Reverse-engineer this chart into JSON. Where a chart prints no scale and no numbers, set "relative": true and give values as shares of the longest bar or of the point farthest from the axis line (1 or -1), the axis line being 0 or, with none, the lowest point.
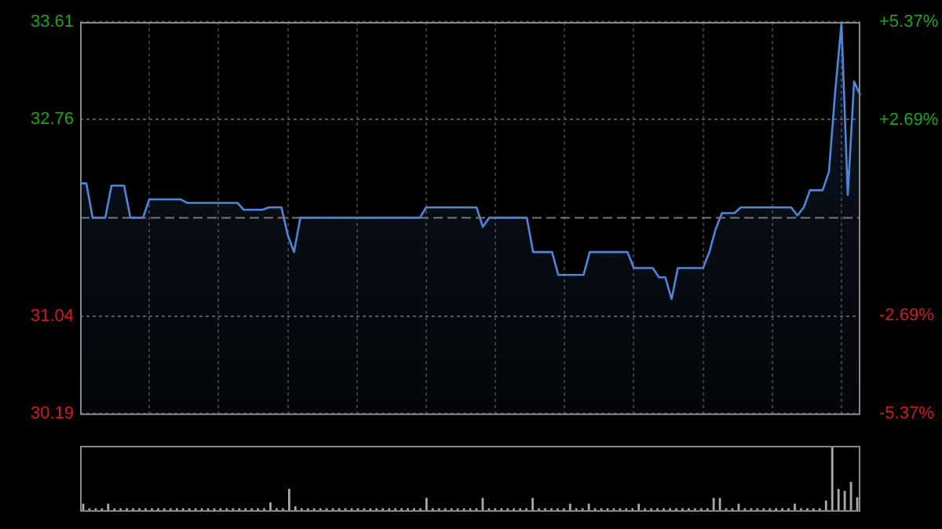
{
  "chart_data": [
    {
      "type": "area",
      "categories": [
        null,
        null,
        null,
        null,
        null,
        null,
        null,
        null,
        null,
        null,
        null,
        null,
        null,
        null,
        null,
        null,
        null,
        null,
        null,
        null,
        null,
        null,
        null,
        null,
        null,
        null,
        null,
        null,
        null,
        null,
        null,
        null,
        null,
        null,
        null,
        null,
        null,
        null,
        null,
        null,
        null,
        null,
        null,
        null,
        null,
        null,
        null,
        null,
        null,
        null,
        null,
        null,
        null,
        null,
        null,
        null,
        null,
        null,
        null,
        null,
        null,
        null,
        null,
        null,
        null,
        null,
        null,
        null,
        null,
        null,
        null,
        null,
        null,
        null,
        null,
        null,
        null,
        null,
        null,
        null,
        null,
        null,
        null,
        null,
        null,
        null,
        null,
        null,
        null,
        null,
        null,
        null,
        null,
        null,
        null,
        null,
        null,
        null,
        null,
        null,
        null,
        null,
        null,
        null,
        null,
        null,
        null,
        null,
        null,
        null,
        null,
        null,
        null,
        null,
        null,
        null,
        null,
        null,
        null,
        null,
        null,
        null,
        null,
        null,
        null
      ],
      "series": [
        {
          "color": "#4f86d9",
          "values": [
            32.2,
            32.2,
            31.9,
            31.9,
            31.9,
            32.18,
            32.18,
            32.18,
            31.9,
            31.9,
            31.9,
            32.06,
            32.06,
            32.06,
            32.06,
            32.06,
            32.06,
            32.03,
            32.03,
            32.03,
            32.03,
            32.03,
            32.03,
            32.03,
            32.03,
            32.03,
            31.97,
            31.97,
            31.97,
            31.97,
            31.99,
            31.99,
            31.99,
            31.75,
            31.6,
            31.9,
            31.9,
            31.9,
            31.9,
            31.9,
            31.9,
            31.9,
            31.9,
            31.9,
            31.9,
            31.9,
            31.9,
            31.9,
            31.9,
            31.9,
            31.9,
            31.9,
            31.9,
            31.9,
            31.9,
            31.99,
            31.99,
            31.99,
            31.99,
            31.99,
            31.99,
            31.99,
            31.99,
            31.99,
            31.82,
            31.9,
            31.9,
            31.9,
            31.9,
            31.9,
            31.9,
            31.9,
            31.6,
            31.6,
            31.6,
            31.6,
            31.4,
            31.4,
            31.4,
            31.4,
            31.4,
            31.6,
            31.6,
            31.6,
            31.6,
            31.6,
            31.6,
            31.6,
            31.46,
            31.46,
            31.46,
            31.46,
            31.38,
            31.38,
            31.19,
            31.46,
            31.46,
            31.46,
            31.46,
            31.46,
            31.6,
            31.8,
            31.94,
            31.94,
            31.94,
            31.99,
            31.99,
            31.99,
            31.99,
            31.99,
            31.99,
            31.99,
            31.99,
            31.99,
            31.92,
            31.99,
            32.14,
            32.14,
            32.14,
            32.3,
            33.0,
            33.6,
            32.1,
            33.09,
            32.97
          ]
        }
      ],
      "ylim": [
        30.19,
        33.61
      ],
      "yticks": [
        30.19,
        31.04,
        32.76,
        33.61
      ],
      "y2lim": [
        -5.37,
        5.37
      ],
      "y2ticks": [
        {
          "value": -5.37,
          "label": "-5.37%"
        },
        {
          "value": -2.69,
          "label": "-2.69%"
        },
        {
          "value": 2.69,
          "label": "+2.69%"
        },
        {
          "value": 5.37,
          "label": "+5.37%"
        }
      ],
      "ref_lines": [
        {
          "axis": "y",
          "value": 31.9,
          "color": "#777777",
          "line_style": "dashed"
        }
      ],
      "grid": true,
      "legend": false,
      "marker": "none",
      "line_style": "solid",
      "tick_labels": "y"
    },
    {
      "type": "bar",
      "relative": true,
      "categories": [
        null,
        null,
        null,
        null,
        null,
        null,
        null,
        null,
        null,
        null,
        null,
        null,
        null,
        null,
        null,
        null,
        null,
        null,
        null,
        null,
        null,
        null,
        null,
        null,
        null,
        null,
        null,
        null,
        null,
        null,
        null,
        null,
        null,
        null,
        null,
        null,
        null,
        null,
        null,
        null,
        null,
        null,
        null,
        null,
        null,
        null,
        null,
        null,
        null,
        null,
        null,
        null,
        null,
        null,
        null,
        null,
        null,
        null,
        null,
        null,
        null,
        null,
        null,
        null,
        null,
        null,
        null,
        null,
        null,
        null,
        null,
        null,
        null,
        null,
        null,
        null,
        null,
        null,
        null,
        null,
        null,
        null,
        null,
        null,
        null,
        null,
        null,
        null,
        null,
        null,
        null,
        null,
        null,
        null,
        null,
        null,
        null,
        null,
        null,
        null,
        null,
        null,
        null,
        null,
        null,
        null,
        null,
        null,
        null,
        null,
        null,
        null,
        null,
        null,
        null,
        null,
        null,
        null,
        null,
        null,
        null,
        null,
        null,
        null,
        null
      ],
      "values": [
        0.1,
        0.03,
        0.03,
        0.03,
        0.1,
        0.03,
        0.03,
        0.03,
        0.03,
        0.03,
        0.03,
        0.03,
        0.03,
        0.03,
        0.03,
        0.03,
        0.03,
        0.03,
        0.03,
        0.03,
        0.03,
        0.03,
        0.03,
        0.03,
        0.03,
        0.03,
        0.03,
        0.03,
        0.03,
        0.03,
        0.12,
        0.03,
        0.03,
        0.33,
        0.06,
        0.03,
        0.03,
        0.03,
        0.03,
        0.03,
        0.03,
        0.03,
        0.03,
        0.03,
        0.03,
        0.03,
        0.03,
        0.03,
        0.03,
        0.03,
        0.03,
        0.03,
        0.03,
        0.03,
        0.03,
        0.19,
        0.03,
        0.03,
        0.03,
        0.03,
        0.03,
        0.03,
        0.03,
        0.03,
        0.19,
        0.03,
        0.03,
        0.03,
        0.03,
        0.03,
        0.03,
        0.03,
        0.19,
        0.03,
        0.03,
        0.03,
        0.03,
        0.03,
        0.1,
        0.03,
        0.03,
        0.1,
        0.03,
        0.03,
        0.03,
        0.03,
        0.03,
        0.03,
        0.03,
        0.1,
        0.03,
        0.03,
        0.03,
        0.03,
        0.03,
        0.03,
        0.03,
        0.03,
        0.03,
        0.03,
        0.03,
        0.19,
        0.19,
        0.03,
        0.03,
        0.1,
        0.03,
        0.03,
        0.03,
        0.03,
        0.03,
        0.03,
        0.03,
        0.03,
        0.1,
        0.03,
        0.03,
        0.03,
        0.03,
        0.15,
        1,
        0.33,
        0.3,
        0.44,
        0.2
      ],
      "color": "#aaaaaa"
    }
  ]
}
